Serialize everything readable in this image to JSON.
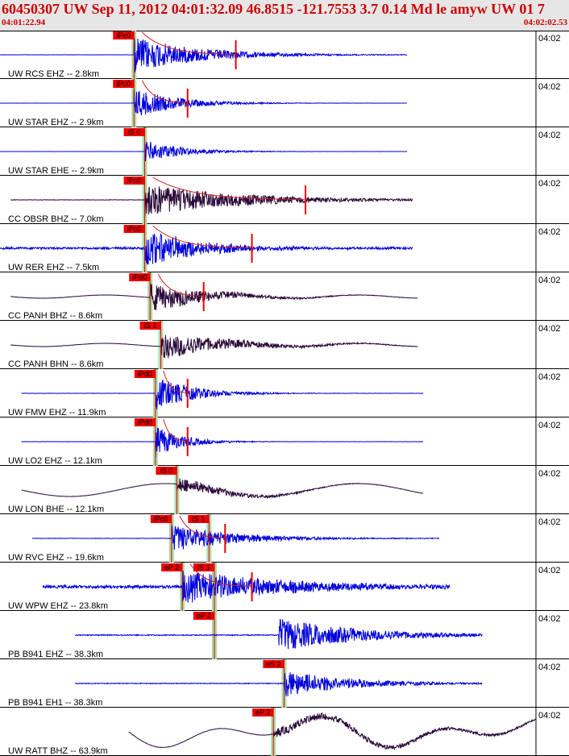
{
  "header": {
    "title": "60450307 UW Sep 11, 2012 04:01:32.09    46.8515 -121.7553  3.7 0.14 Md le amyw UW 01    7",
    "start_time": "04:01:22.94",
    "end_time": "04:02:02.53"
  },
  "tick_label": "04:02",
  "colors": {
    "trace_blue": "#0000dd",
    "trace_dark": "#2a0a3a",
    "pick_box": "#ee0000",
    "pick_band": "#a8dca8",
    "coda_line": "#cc2222",
    "header_text": "#cc0000"
  },
  "traces": [
    {
      "label": "UW RCS EHZ -- 2.8km",
      "color": "blue",
      "pick": "iPc0",
      "onset": 0.25,
      "x0": 0.0,
      "x1": 0.76,
      "noise": 0.02,
      "burst": 0.8,
      "decay": 0.12,
      "kind": "spike",
      "coda_end": 0.44
    },
    {
      "label": "UW STAR EHZ -- 2.9km",
      "color": "blue",
      "pick": "iPc0",
      "onset": 0.25,
      "x0": 0.0,
      "x1": 0.76,
      "noise": 0.01,
      "burst": 0.65,
      "decay": 0.08,
      "kind": "spike",
      "coda_end": 0.35
    },
    {
      "label": "UW STAR EHE -- 2.9km",
      "color": "blue",
      "pick": "iS 0",
      "onset": 0.27,
      "x0": 0.0,
      "x1": 0.76,
      "noise": 0.01,
      "burst": 0.5,
      "decay": 0.07,
      "kind": "spike",
      "coda_end": null
    },
    {
      "label": "CC OBSR BHZ -- 7.0km",
      "color": "dark",
      "pick": "iPc0",
      "onset": 0.27,
      "x0": 0.02,
      "x1": 0.77,
      "noise": 0.04,
      "burst": 0.7,
      "decay": 0.18,
      "kind": "spike",
      "coda_end": 0.57
    },
    {
      "label": "UW RER EHZ -- 7.5km",
      "color": "blue",
      "pick": "iPc0",
      "onset": 0.27,
      "x0": 0.0,
      "x1": 0.77,
      "noise": 0.22,
      "burst": 0.85,
      "decay": 0.1,
      "kind": "spike",
      "coda_end": 0.47
    },
    {
      "label": "CC PANH BHZ -- 8.6km",
      "color": "dark",
      "pick": "iPd0",
      "onset": 0.28,
      "x0": 0.02,
      "x1": 0.78,
      "noise": 0.02,
      "burst": 0.65,
      "decay": 0.1,
      "kind": "wave",
      "coda_end": 0.38
    },
    {
      "label": "CC PANH BHN -- 8.6km",
      "color": "dark",
      "pick": "iS 1",
      "onset": 0.3,
      "x0": 0.02,
      "x1": 0.78,
      "noise": 0.02,
      "burst": 0.6,
      "decay": 0.12,
      "kind": "wave",
      "coda_end": null
    },
    {
      "label": "UW FMW EHZ -- 11.9km",
      "color": "blue",
      "pick": "iPd0",
      "onset": 0.29,
      "x0": 0.04,
      "x1": 0.79,
      "noise": 0.03,
      "burst": 0.75,
      "decay": 0.07,
      "kind": "spike",
      "coda_end": 0.35
    },
    {
      "label": "UW LO2 EHZ -- 12.1km",
      "color": "blue",
      "pick": "iPd0",
      "onset": 0.29,
      "x0": 0.04,
      "x1": 0.79,
      "noise": 0.02,
      "burst": 0.7,
      "decay": 0.05,
      "kind": "spike",
      "coda_end": 0.35
    },
    {
      "label": "UW LON BHE -- 12.1km",
      "color": "dark",
      "pick": "iS 0",
      "onset": 0.33,
      "x0": 0.04,
      "x1": 0.79,
      "noise": 0.02,
      "burst": 0.35,
      "decay": 0.1,
      "kind": "swell",
      "coda_end": null
    },
    {
      "label": "UW RVC EHZ -- 19.6km",
      "color": "blue",
      "pick": "iPc0",
      "onset": 0.32,
      "x0": 0.06,
      "x1": 0.82,
      "noise": 0.04,
      "burst": 0.6,
      "decay": 0.12,
      "kind": "spike",
      "coda_end": 0.42,
      "pick2": "iS 1",
      "onset2": 0.39
    },
    {
      "label": "UW WPW EHZ -- 23.8km",
      "color": "blue",
      "pick": "eP 2",
      "onset": 0.34,
      "x0": 0.08,
      "x1": 0.84,
      "noise": 0.3,
      "burst": 0.7,
      "decay": 0.2,
      "kind": "spike",
      "coda_end": 0.47,
      "pick2": "iS 1",
      "onset2": 0.4
    },
    {
      "label": "PB B941 EHZ -- 38.3km",
      "color": "blue",
      "pick": "eP 2",
      "onset": 0.4,
      "x0": 0.14,
      "x1": 0.9,
      "noise": 0.1,
      "burst": 0.75,
      "decay": 0.15,
      "kind": "spike",
      "coda_end": null,
      "onset_burst": 0.52
    },
    {
      "label": "PB B941 EH1 -- 38.3km",
      "color": "blue",
      "pick": "eS 2",
      "onset": 0.53,
      "x0": 0.14,
      "x1": 0.9,
      "noise": 0.08,
      "burst": 0.6,
      "decay": 0.12,
      "kind": "spike",
      "coda_end": null
    },
    {
      "label": "UW RATT BHZ -- 63.9km",
      "color": "dark",
      "pick": "eP 2",
      "onset": 0.51,
      "x0": 0.24,
      "x1": 1.0,
      "noise": 0.03,
      "burst": 0.2,
      "decay": 0.3,
      "kind": "swell2",
      "coda_end": null
    }
  ]
}
